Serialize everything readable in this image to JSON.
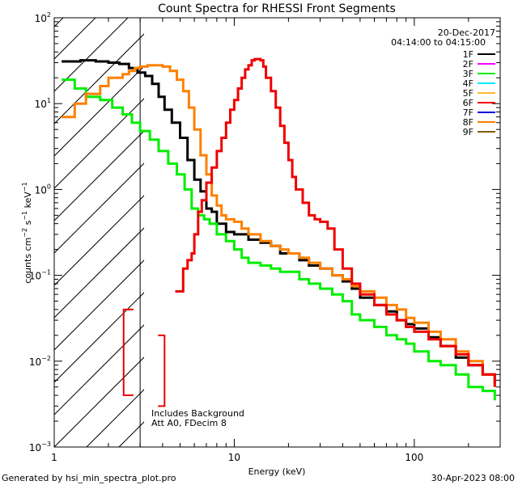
{
  "chart_data": {
    "type": "line",
    "title": "Count Spectra for RHESSI Front Segments",
    "xlabel": "Energy (keV)",
    "ylabel": {
      "base": "counts cm",
      "exp1": "−2",
      "mid": " s",
      "exp2": "−1",
      "end": " keV",
      "exp3": "−1"
    },
    "xscale": "log",
    "yscale": "log",
    "xlim": [
      1,
      300
    ],
    "ylim": [
      0.001,
      100
    ],
    "xticks": [
      {
        "value": 1,
        "label": "1"
      },
      {
        "value": 10,
        "label": "10"
      },
      {
        "value": 100,
        "label": "100"
      }
    ],
    "yticks": [
      {
        "value": 0.001,
        "base": "10",
        "exp": "−3"
      },
      {
        "value": 0.01,
        "base": "10",
        "exp": "−2"
      },
      {
        "value": 0.1,
        "base": "10",
        "exp": "−1"
      },
      {
        "value": 1,
        "base": "10",
        "exp": "0"
      },
      {
        "value": 10,
        "base": "10",
        "exp": "1"
      },
      {
        "value": 100,
        "base": "10",
        "exp": "2"
      }
    ],
    "date": "20-Dec-2017",
    "time_range": "04:14:00 to 04:15:00",
    "excluded_below_keV": 3,
    "legend": [
      {
        "name": "1F",
        "color": "#000000"
      },
      {
        "name": "2F",
        "color": "#ff00ff"
      },
      {
        "name": "3F",
        "color": "#00ee00"
      },
      {
        "name": "4F",
        "color": "#00e5ff"
      },
      {
        "name": "5F",
        "color": "#ffbb33"
      },
      {
        "name": "6F",
        "color": "#ee0000"
      },
      {
        "name": "7F",
        "color": "#0000dd"
      },
      {
        "name": "8F",
        "color": "#ff8000"
      },
      {
        "name": "9F",
        "color": "#7f6000"
      }
    ],
    "series": [
      {
        "name": "1F",
        "color": "#000000",
        "points": [
          [
            1.1,
            31
          ],
          [
            1.4,
            32
          ],
          [
            1.7,
            31
          ],
          [
            2.0,
            30
          ],
          [
            2.3,
            29
          ],
          [
            2.6,
            26
          ],
          [
            2.9,
            23
          ],
          [
            3.2,
            21
          ],
          [
            3.5,
            17
          ],
          [
            3.8,
            12
          ],
          [
            4.1,
            8.5
          ],
          [
            4.5,
            6
          ],
          [
            5.0,
            4
          ],
          [
            5.5,
            2.2
          ],
          [
            6.0,
            1.3
          ],
          [
            6.5,
            0.95
          ],
          [
            7.0,
            0.6
          ],
          [
            7.5,
            0.55
          ],
          [
            8.0,
            0.4
          ],
          [
            9.0,
            0.32
          ],
          [
            10,
            0.3
          ],
          [
            11,
            0.3
          ],
          [
            12,
            0.26
          ],
          [
            14,
            0.24
          ],
          [
            16,
            0.22
          ],
          [
            18,
            0.18
          ],
          [
            20,
            0.18
          ],
          [
            23,
            0.15
          ],
          [
            26,
            0.13
          ],
          [
            30,
            0.12
          ],
          [
            35,
            0.1
          ],
          [
            40,
            0.085
          ],
          [
            45,
            0.07
          ],
          [
            50,
            0.055
          ],
          [
            60,
            0.045
          ],
          [
            70,
            0.038
          ],
          [
            80,
            0.03
          ],
          [
            90,
            0.027
          ],
          [
            100,
            0.024
          ],
          [
            120,
            0.019
          ],
          [
            140,
            0.015
          ],
          [
            170,
            0.011
          ],
          [
            200,
            0.009
          ],
          [
            240,
            0.007
          ],
          [
            280,
            0.0055
          ]
        ]
      },
      {
        "name": "3F",
        "color": "#00ee00",
        "points": [
          [
            1.1,
            19
          ],
          [
            1.3,
            15
          ],
          [
            1.5,
            12
          ],
          [
            1.8,
            11
          ],
          [
            2.1,
            9
          ],
          [
            2.4,
            7.5
          ],
          [
            2.7,
            6
          ],
          [
            3.0,
            4.8
          ],
          [
            3.4,
            3.8
          ],
          [
            3.8,
            2.8
          ],
          [
            4.3,
            2.0
          ],
          [
            4.8,
            1.5
          ],
          [
            5.3,
            1.0
          ],
          [
            5.8,
            0.6
          ],
          [
            6.3,
            0.5
          ],
          [
            6.8,
            0.45
          ],
          [
            7.3,
            0.4
          ],
          [
            8.0,
            0.3
          ],
          [
            9.0,
            0.25
          ],
          [
            10,
            0.2
          ],
          [
            11,
            0.16
          ],
          [
            12,
            0.14
          ],
          [
            14,
            0.13
          ],
          [
            16,
            0.12
          ],
          [
            18,
            0.11
          ],
          [
            20,
            0.11
          ],
          [
            23,
            0.09
          ],
          [
            26,
            0.08
          ],
          [
            30,
            0.07
          ],
          [
            35,
            0.06
          ],
          [
            40,
            0.05
          ],
          [
            45,
            0.035
          ],
          [
            50,
            0.03
          ],
          [
            60,
            0.025
          ],
          [
            70,
            0.02
          ],
          [
            80,
            0.018
          ],
          [
            90,
            0.016
          ],
          [
            100,
            0.013
          ],
          [
            120,
            0.01
          ],
          [
            140,
            0.009
          ],
          [
            170,
            0.007
          ],
          [
            200,
            0.005
          ],
          [
            240,
            0.0045
          ],
          [
            280,
            0.0035
          ]
        ]
      },
      {
        "name": "8F",
        "color": "#ff8000",
        "points": [
          [
            1.1,
            7
          ],
          [
            1.3,
            10
          ],
          [
            1.5,
            13
          ],
          [
            1.8,
            16
          ],
          [
            2.0,
            20
          ],
          [
            2.2,
            20
          ],
          [
            2.4,
            22
          ],
          [
            2.6,
            24
          ],
          [
            2.8,
            26
          ],
          [
            3.0,
            27
          ],
          [
            3.3,
            28
          ],
          [
            3.7,
            28
          ],
          [
            4.0,
            27
          ],
          [
            4.4,
            24
          ],
          [
            4.8,
            19
          ],
          [
            5.2,
            14
          ],
          [
            5.6,
            9
          ],
          [
            6.0,
            5
          ],
          [
            6.5,
            2.5
          ],
          [
            7.0,
            1.5
          ],
          [
            7.5,
            0.85
          ],
          [
            8.0,
            0.65
          ],
          [
            8.5,
            0.5
          ],
          [
            9.0,
            0.45
          ],
          [
            10,
            0.42
          ],
          [
            11,
            0.35
          ],
          [
            12,
            0.3
          ],
          [
            14,
            0.25
          ],
          [
            16,
            0.22
          ],
          [
            18,
            0.2
          ],
          [
            20,
            0.18
          ],
          [
            23,
            0.16
          ],
          [
            26,
            0.14
          ],
          [
            30,
            0.12
          ],
          [
            35,
            0.1
          ],
          [
            40,
            0.09
          ],
          [
            45,
            0.075
          ],
          [
            50,
            0.065
          ],
          [
            60,
            0.055
          ],
          [
            70,
            0.045
          ],
          [
            80,
            0.04
          ],
          [
            90,
            0.032
          ],
          [
            100,
            0.028
          ],
          [
            120,
            0.022
          ],
          [
            140,
            0.018
          ],
          [
            170,
            0.013
          ],
          [
            200,
            0.01
          ],
          [
            240,
            0.007
          ],
          [
            280,
            0.005
          ]
        ]
      },
      {
        "name": "6F",
        "color": "#ee0000",
        "points": [
          [
            4.7,
            0.065
          ],
          [
            5.0,
            0.065
          ],
          [
            5.2,
            0.12
          ],
          [
            5.5,
            0.15
          ],
          [
            5.8,
            0.18
          ],
          [
            6.0,
            0.3
          ],
          [
            6.3,
            0.55
          ],
          [
            6.6,
            0.75
          ],
          [
            7.0,
            1.2
          ],
          [
            7.5,
            1.8
          ],
          [
            8.0,
            2.8
          ],
          [
            8.5,
            4
          ],
          [
            9.0,
            6
          ],
          [
            9.5,
            8.5
          ],
          [
            10,
            11
          ],
          [
            10.5,
            15
          ],
          [
            11,
            20
          ],
          [
            11.5,
            25
          ],
          [
            12,
            28
          ],
          [
            12.5,
            32
          ],
          [
            13,
            33
          ],
          [
            13.5,
            33
          ],
          [
            14,
            32
          ],
          [
            14.5,
            27
          ],
          [
            15,
            20
          ],
          [
            16,
            14
          ],
          [
            17,
            9
          ],
          [
            18,
            5.5
          ],
          [
            19,
            3.5
          ],
          [
            20,
            2.2
          ],
          [
            21,
            1.4
          ],
          [
            22,
            1.0
          ],
          [
            24,
            0.7
          ],
          [
            26,
            0.5
          ],
          [
            28,
            0.45
          ],
          [
            30,
            0.42
          ],
          [
            33,
            0.35
          ],
          [
            36,
            0.2
          ],
          [
            40,
            0.12
          ],
          [
            45,
            0.08
          ],
          [
            50,
            0.06
          ],
          [
            60,
            0.045
          ],
          [
            70,
            0.035
          ],
          [
            80,
            0.03
          ],
          [
            90,
            0.025
          ],
          [
            100,
            0.022
          ],
          [
            120,
            0.018
          ],
          [
            140,
            0.015
          ],
          [
            170,
            0.012
          ],
          [
            200,
            0.009
          ],
          [
            240,
            0.007
          ],
          [
            280,
            0.005
          ]
        ]
      }
    ],
    "annotations": [
      "Includes Background",
      "Att A0, FDecim 8"
    ]
  },
  "footer": {
    "left": "Generated by hsi_min_spectra_plot.pro",
    "right": "30-Apr-2023 08:00"
  }
}
